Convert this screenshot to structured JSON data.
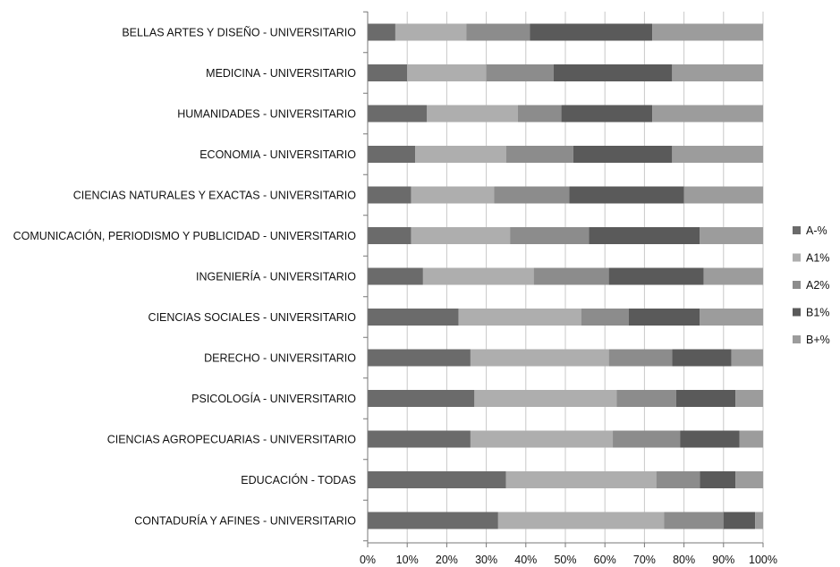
{
  "chart_data": {
    "type": "bar",
    "orientation": "horizontal",
    "stacked": "percent",
    "categories": [
      "BELLAS ARTES Y DISEÑO - UNIVERSITARIO",
      "MEDICINA - UNIVERSITARIO",
      "HUMANIDADES - UNIVERSITARIO",
      "ECONOMIA - UNIVERSITARIO",
      "CIENCIAS NATURALES Y EXACTAS - UNIVERSITARIO",
      "COMUNICACIÓN, PERIODISMO Y PUBLICIDAD - UNIVERSITARIO",
      "INGENIERÍA - UNIVERSITARIO",
      "CIENCIAS SOCIALES - UNIVERSITARIO",
      "DERECHO - UNIVERSITARIO",
      "PSICOLOGÍA - UNIVERSITARIO",
      "CIENCIAS AGROPECUARIAS  - UNIVERSITARIO",
      "EDUCACIÓN - TODAS",
      "CONTADURÍA Y AFINES - UNIVERSITARIO"
    ],
    "series": [
      {
        "name": "A-%",
        "color": "#6b6b6b",
        "values": [
          7,
          10,
          15,
          12,
          11,
          11,
          14,
          23,
          26,
          27,
          26,
          35,
          33
        ]
      },
      {
        "name": "A1%",
        "color": "#aeaeae",
        "values": [
          18,
          20,
          23,
          23,
          21,
          25,
          28,
          31,
          35,
          36,
          36,
          38,
          42
        ]
      },
      {
        "name": "A2%",
        "color": "#8c8c8c",
        "values": [
          16,
          17,
          11,
          17,
          19,
          20,
          19,
          12,
          16,
          15,
          17,
          11,
          15
        ]
      },
      {
        "name": "B1%",
        "color": "#5a5a5a",
        "values": [
          31,
          30,
          23,
          25,
          29,
          28,
          24,
          18,
          15,
          15,
          15,
          9,
          8
        ]
      },
      {
        "name": "B+%",
        "color": "#9c9c9c",
        "values": [
          28,
          23,
          28,
          23,
          20,
          16,
          15,
          16,
          8,
          7,
          6,
          7,
          2
        ]
      }
    ],
    "xlim": [
      0,
      100
    ],
    "xticks": [
      "0%",
      "10%",
      "20%",
      "30%",
      "40%",
      "50%",
      "60%",
      "70%",
      "80%",
      "90%",
      "100%"
    ],
    "grid": true,
    "legend_position": "right",
    "title": "",
    "xlabel": "",
    "ylabel": ""
  }
}
